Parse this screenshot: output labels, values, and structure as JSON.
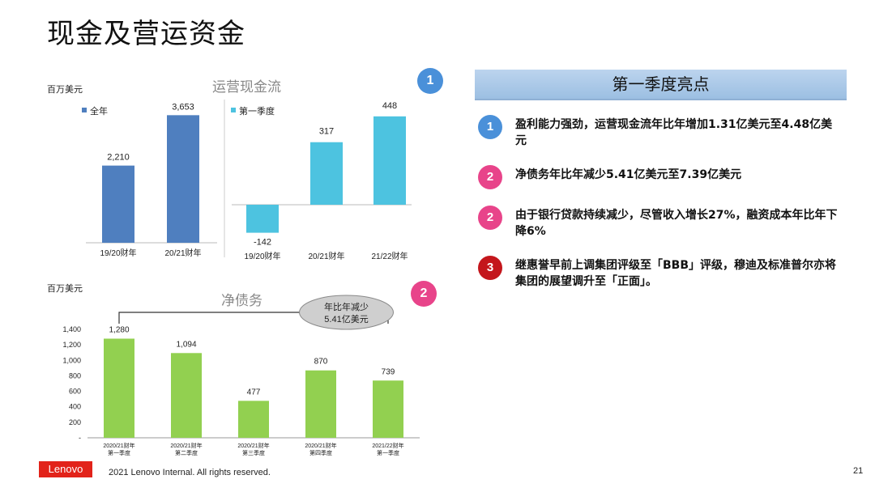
{
  "page": {
    "title": "现金及营运资金",
    "footer_logo": "Lenovo",
    "footer_text": "2021 Lenovo Internal. All rights reserved.",
    "page_number": "21"
  },
  "ocf_section": {
    "title": "运营现金流",
    "unit": "百万美元",
    "badge": "1"
  },
  "debt_section": {
    "title": "净债务",
    "unit": "百万美元",
    "badge": "2",
    "callout_line1": "年比年减少",
    "callout_line2": "5.41亿美元"
  },
  "highlights": {
    "header": "第一季度亮点",
    "items": [
      {
        "badge": "1",
        "color": "#4a90d9",
        "text": "盈利能力强劲，运营现金流年比年增加1.31亿美元至4.48亿美元"
      },
      {
        "badge": "2",
        "color": "#e8448a",
        "text": "净债务年比年减少5.41亿美元至7.39亿美元"
      },
      {
        "badge": "2",
        "color": "#e8448a",
        "text": "由于银行贷款持续减少，尽管收入增长27%，融资成本年比年下降6%"
      },
      {
        "badge": "3",
        "color": "#c4161c",
        "text": "继惠誉早前上调集团评级至「BBB」评级，穆迪及标准普尔亦将集团的展望调升至「正面」。"
      }
    ]
  },
  "colors": {
    "full_year": "#4f7fbf",
    "first_quarter": "#4dc3e0",
    "net_debt": "#92d050",
    "badge_blue": "#4a90d9",
    "badge_pink": "#e8448a"
  },
  "chart_data": [
    {
      "type": "bar",
      "legend": "全年",
      "categories": [
        "19/20财年",
        "20/21财年"
      ],
      "series": [
        {
          "name": "全年",
          "values": [
            2210,
            3653
          ]
        }
      ],
      "value_labels": [
        "2,210",
        "3,653"
      ],
      "ylim": [
        0,
        3800
      ]
    },
    {
      "type": "bar",
      "legend": "第一季度",
      "categories": [
        "19/20财年",
        "20/21财年",
        "21/22财年"
      ],
      "series": [
        {
          "name": "第一季度",
          "values": [
            -142,
            317,
            448
          ]
        }
      ],
      "value_labels": [
        "-142",
        "317",
        "448"
      ],
      "ylim": [
        -160,
        480
      ]
    },
    {
      "type": "bar",
      "categories": [
        [
          "2020/21财年",
          "第一季度"
        ],
        [
          "2020/21财年",
          "第二季度"
        ],
        [
          "2020/21财年",
          "第三季度"
        ],
        [
          "2020/21财年",
          "第四季度"
        ],
        [
          "2021/22财年",
          "第一季度"
        ]
      ],
      "values": [
        1280,
        1094,
        477,
        870,
        739
      ],
      "value_labels": [
        "1,280",
        "1,094",
        "477",
        "870",
        "739"
      ],
      "ylim": [
        0,
        1400
      ],
      "yticks": [
        "-",
        "200",
        "400",
        "600",
        "800",
        "1,000",
        "1,200",
        "1,400"
      ],
      "ytick_values": [
        0,
        200,
        400,
        600,
        800,
        1000,
        1200,
        1400
      ]
    }
  ]
}
